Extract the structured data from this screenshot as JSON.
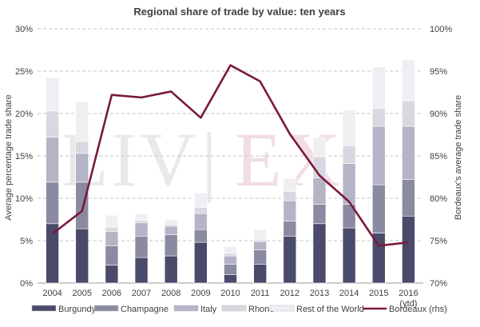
{
  "chart_data": {
    "type": "bar",
    "stacked": true,
    "title": "Regional share of trade by value: ten years",
    "ylabel": "Average percentage trade share",
    "y2label": "Bordeaux's average trade share",
    "ylim": [
      0,
      30
    ],
    "y2lim": [
      70,
      100
    ],
    "yticks": [
      "0%",
      "5%",
      "10%",
      "15%",
      "20%",
      "25%",
      "30%"
    ],
    "y2ticks": [
      "70%",
      "75%",
      "80%",
      "85%",
      "90%",
      "95%",
      "100%"
    ],
    "categories": [
      "2004",
      "2005",
      "2006",
      "2007",
      "2008",
      "2009",
      "2010",
      "2011",
      "2012",
      "2013",
      "2014",
      "2015",
      "2016 (ytd)"
    ],
    "grid": true,
    "legend_position": "bottom",
    "watermark": "LIV-EX",
    "series": [
      {
        "name": "Burgundy",
        "color": "#4a4a6a",
        "values": [
          7.0,
          6.4,
          2.1,
          3.0,
          3.2,
          4.8,
          1.0,
          2.2,
          5.5,
          7.0,
          6.5,
          5.9,
          7.9
        ]
      },
      {
        "name": "Champagne",
        "color": "#8a8aa0",
        "values": [
          4.9,
          5.5,
          2.3,
          2.5,
          2.5,
          1.5,
          1.2,
          1.7,
          1.8,
          2.3,
          2.8,
          5.7,
          4.3
        ]
      },
      {
        "name": "Italy",
        "color": "#b4b4c6",
        "values": [
          5.3,
          3.4,
          1.7,
          1.6,
          1.0,
          1.9,
          1.0,
          1.0,
          2.4,
          3.1,
          4.8,
          6.9,
          6.3
        ]
      },
      {
        "name": "Rhone",
        "color": "#d8d8e0",
        "values": [
          3.1,
          1.4,
          0.5,
          0.3,
          0.2,
          0.7,
          0.3,
          0.2,
          1.1,
          2.5,
          2.1,
          2.1,
          3.0
        ]
      },
      {
        "name": "Rest of the World",
        "color": "#efeff3",
        "values": [
          3.9,
          4.7,
          1.4,
          0.8,
          0.6,
          1.7,
          0.8,
          1.2,
          1.5,
          2.3,
          4.2,
          4.9,
          4.8
        ]
      }
    ],
    "line_series": {
      "name": "Bordeaux (rhs)",
      "color": "#7a1a3a",
      "axis": "right",
      "values": [
        75.8,
        78.5,
        92.2,
        91.9,
        92.6,
        89.5,
        95.7,
        93.8,
        87.6,
        82.7,
        79.6,
        74.4,
        74.8
      ]
    }
  }
}
